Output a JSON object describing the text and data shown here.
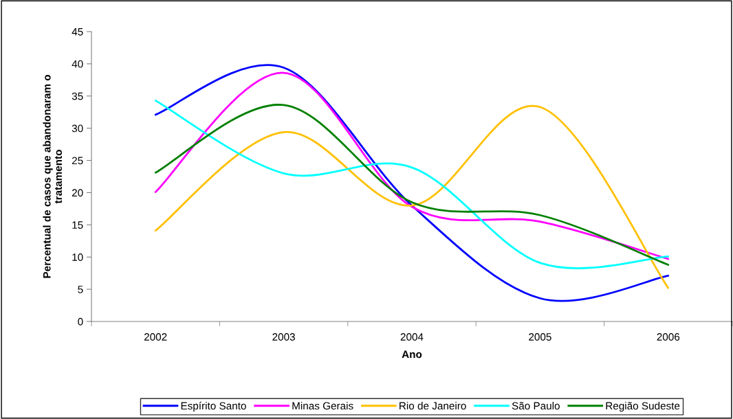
{
  "chart_data": {
    "type": "line",
    "xlabel": "Ano",
    "ylabel": "Percentual de casos que abandonaram o tratamento",
    "categories": [
      "2002",
      "2003",
      "2004",
      "2005",
      "2006"
    ],
    "series": [
      {
        "name": "Espírito Santo",
        "color": "#0000ff",
        "values": [
          32.1,
          39.4,
          18.0,
          3.6,
          7.1
        ]
      },
      {
        "name": "Minas Gerais",
        "color": "#ff00ff",
        "values": [
          20.1,
          38.6,
          17.8,
          15.5,
          9.7
        ]
      },
      {
        "name": "Rio de Janeiro",
        "color": "#ffc000",
        "values": [
          14.1,
          29.4,
          18.0,
          33.3,
          5.2
        ]
      },
      {
        "name": "São Paulo",
        "color": "#00ffff",
        "values": [
          34.3,
          23.0,
          23.9,
          9.1,
          10.1
        ]
      },
      {
        "name": "Região Sudeste",
        "color": "#008000",
        "values": [
          23.1,
          33.6,
          18.5,
          16.5,
          8.8
        ]
      }
    ],
    "ylim": [
      0,
      45
    ],
    "yticks": [
      0,
      5,
      10,
      15,
      20,
      25,
      30,
      35,
      40,
      45
    ],
    "grid": false,
    "legend": "bottom",
    "marker": "none",
    "line_style": "solid"
  }
}
